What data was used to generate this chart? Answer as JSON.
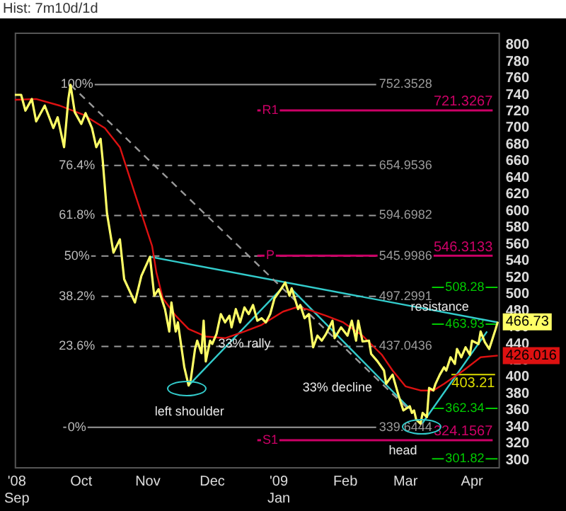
{
  "chart_data": {
    "type": "line",
    "title": "Hist: 7m10d/1d",
    "xlim": [
      "2008-08-31",
      "2009-04-14"
    ],
    "xticks": [
      {
        "value": "2008-09-01",
        "label": "'08\nSep"
      },
      {
        "value": "2008-10-01",
        "label": "Oct"
      },
      {
        "value": "2008-11-01",
        "label": "Nov"
      },
      {
        "value": "2008-12-01",
        "label": "Dec"
      },
      {
        "value": "2009-01-01",
        "label": "'09\nJan"
      },
      {
        "value": "2009-02-01",
        "label": "Feb"
      },
      {
        "value": "2009-03-01",
        "label": "Mar"
      },
      {
        "value": "2009-04-01",
        "label": "Apr"
      }
    ],
    "ylim": [
      290,
      815
    ],
    "yticks": [
      300,
      320,
      340,
      360,
      380,
      400,
      420,
      440,
      460,
      480,
      500,
      520,
      540,
      560,
      580,
      600,
      620,
      640,
      660,
      680,
      700,
      720,
      740,
      760,
      780,
      800
    ],
    "grid": false,
    "legend": false,
    "marker": "none",
    "series": [
      {
        "color": "#ffff66",
        "x": [
          "2008-08-31",
          "2008-09-03",
          "2008-09-05",
          "2008-09-08",
          "2008-09-10",
          "2008-09-14",
          "2008-09-18",
          "2008-09-20",
          "2008-09-23",
          "2008-09-25",
          "2008-09-26",
          "2008-09-28",
          "2008-10-01",
          "2008-10-03",
          "2008-10-06",
          "2008-10-08",
          "2008-10-10",
          "2008-10-11",
          "2008-10-13",
          "2008-10-16",
          "2008-10-19",
          "2008-10-21",
          "2008-10-26",
          "2008-10-29",
          "2008-11-02",
          "2008-11-04",
          "2008-11-06",
          "2008-11-09",
          "2008-11-11",
          "2008-11-12",
          "2008-11-14",
          "2008-11-15",
          "2008-11-18",
          "2008-11-20",
          "2008-11-21",
          "2008-11-23",
          "2008-11-24",
          "2008-11-26",
          "2008-11-27",
          "2008-11-28",
          "2008-11-30",
          "2008-12-01",
          "2008-12-03",
          "2008-12-05",
          "2008-12-07",
          "2008-12-09",
          "2008-12-10",
          "2008-12-12",
          "2008-12-14",
          "2008-12-16",
          "2008-12-18",
          "2008-12-20",
          "2008-12-22",
          "2008-12-24",
          "2008-12-26",
          "2008-12-28",
          "2008-12-30",
          "2009-01-02",
          "2009-01-04",
          "2009-01-06",
          "2009-01-07",
          "2009-01-10",
          "2009-01-11",
          "2009-01-13",
          "2009-01-15",
          "2009-01-17",
          "2009-01-19",
          "2009-01-21",
          "2009-01-23",
          "2009-01-26",
          "2009-01-27",
          "2009-01-30",
          "2009-02-02",
          "2009-02-04",
          "2009-02-06",
          "2009-02-07",
          "2009-02-09",
          "2009-02-12",
          "2009-02-13",
          "2009-02-16",
          "2009-02-19",
          "2009-02-20",
          "2009-02-23",
          "2009-02-26",
          "2009-02-28",
          "2009-03-03",
          "2009-03-04",
          "2009-03-05",
          "2009-03-06",
          "2009-03-08",
          "2009-03-09",
          "2009-03-11",
          "2009-03-12",
          "2009-03-14",
          "2009-03-15",
          "2009-03-17",
          "2009-03-19",
          "2009-03-20",
          "2009-03-22",
          "2009-03-24",
          "2009-03-25",
          "2009-03-27",
          "2009-03-29",
          "2009-03-31",
          "2009-04-01",
          "2009-04-04",
          "2009-04-05",
          "2009-04-07",
          "2009-04-09",
          "2009-04-10",
          "2009-04-12",
          "2009-04-13"
        ],
        "values": [
          740,
          740,
          721,
          735,
          708,
          727,
          700,
          713,
          677,
          735,
          752,
          719,
          705,
          718,
          700,
          677,
          687,
          661,
          597,
          550,
          566,
          518,
          490,
          522,
          545,
          498,
          506,
          482,
          455,
          490,
          455,
          466,
          412,
          390,
          397,
          434,
          444,
          429,
          468,
          419,
          444,
          440,
          452,
          476,
          466,
          474,
          460,
          482,
          466,
          484,
          476,
          487,
          468,
          471,
          466,
          476,
          495,
          506,
          514,
          498,
          507,
          482,
          487,
          471,
          476,
          436,
          450,
          444,
          452,
          468,
          447,
          460,
          450,
          468,
          444,
          468,
          443,
          444,
          428,
          419,
          408,
          392,
          403,
          376,
          360,
          365,
          357,
          360,
          349,
          344,
          357,
          352,
          387,
          384,
          392,
          403,
          412,
          408,
          424,
          416,
          434,
          424,
          436,
          427,
          444,
          440,
          455,
          442,
          434,
          442,
          458,
          466.73
        ],
        "value_labels": [
          null,
          null,
          null,
          null,
          null,
          null,
          null,
          null,
          null,
          null,
          null,
          null,
          null,
          null,
          null,
          null,
          null,
          null,
          null,
          null,
          null,
          null,
          null,
          null,
          null,
          null,
          null,
          null,
          null,
          null,
          null,
          null,
          null,
          null,
          null,
          null,
          null,
          null,
          null,
          null,
          null,
          null,
          null,
          null,
          null,
          null,
          null,
          null,
          null,
          null,
          null,
          null,
          null,
          null,
          null,
          null,
          null,
          null,
          null,
          null,
          null,
          null,
          null,
          null,
          null,
          null,
          null,
          null,
          null,
          null,
          null,
          null,
          null,
          null,
          null,
          null,
          null,
          null,
          null,
          null,
          null,
          null,
          null,
          null,
          null,
          null,
          null,
          null,
          null,
          null,
          null,
          null,
          null,
          null,
          null,
          null,
          null,
          null,
          null,
          null,
          null,
          null,
          null,
          null,
          null,
          null,
          null,
          null,
          null,
          null,
          null,
          "466.73"
        ]
      },
      {
        "color": "#dd1111",
        "x": [
          "2008-08-31",
          "2008-09-10",
          "2008-09-21",
          "2008-10-02",
          "2008-10-12",
          "2008-10-19",
          "2008-10-26",
          "2008-11-03",
          "2008-11-05",
          "2008-11-08",
          "2008-11-14",
          "2008-11-20",
          "2008-11-28",
          "2008-12-07",
          "2008-12-16",
          "2008-12-24",
          "2009-01-03",
          "2009-01-09",
          "2009-01-14",
          "2009-01-23",
          "2009-01-31",
          "2009-02-09",
          "2009-02-18",
          "2009-02-23",
          "2009-03-01",
          "2009-03-08",
          "2009-03-14",
          "2009-03-19",
          "2009-03-28",
          "2009-04-05",
          "2009-04-13"
        ],
        "values": [
          734,
          735,
          727,
          716,
          700,
          677,
          621,
          558,
          526,
          495,
          474,
          458,
          449,
          447,
          455,
          463,
          479,
          484,
          482,
          474,
          466,
          450,
          427,
          408,
          389,
          384,
          384,
          392,
          408,
          424,
          426.016
        ],
        "value_labels": [
          null,
          null,
          null,
          null,
          null,
          null,
          null,
          null,
          null,
          null,
          null,
          null,
          null,
          null,
          null,
          null,
          null,
          null,
          null,
          null,
          null,
          null,
          null,
          null,
          null,
          null,
          null,
          null,
          null,
          null,
          "426.016"
        ]
      },
      {
        "color": "#999999",
        "line_style": "dashed",
        "x": [
          "2008-09-26",
          "2009-03-03"
        ],
        "values": [
          752,
          360
        ]
      },
      {
        "color": "#33cccc",
        "x": [
          "2008-11-02",
          "2009-04-13"
        ],
        "values": [
          545,
          466
        ]
      },
      {
        "color": "#33cccc",
        "x": [
          "2008-11-20",
          "2009-01-02"
        ],
        "values": [
          390,
          506
        ]
      },
      {
        "color": "#33cccc",
        "x": [
          "2009-01-07",
          "2009-03-03"
        ],
        "values": [
          506,
          362
        ]
      },
      {
        "color": "#33cccc",
        "x": [
          "2009-03-09",
          "2009-04-08"
        ],
        "values": [
          345,
          455
        ]
      }
    ],
    "ref_lines": [
      {
        "axis": "y",
        "value": 752.3528,
        "label": "752.3528",
        "color": "#9a9a9a",
        "line_style": "solid"
      },
      {
        "axis": "y",
        "value": 654.9536,
        "label": "654.9536",
        "color": "#9a9a9a",
        "line_style": "dashed"
      },
      {
        "axis": "y",
        "value": 594.6982,
        "label": "594.6982",
        "color": "#9a9a9a",
        "line_style": "dashed"
      },
      {
        "axis": "y",
        "value": 545.9986,
        "label": "545.9986",
        "color": "#9a9a9a",
        "line_style": "dashed"
      },
      {
        "axis": "y",
        "value": 497.2991,
        "label": "497.2991",
        "color": "#9a9a9a",
        "line_style": "dashed"
      },
      {
        "axis": "y",
        "value": 437.0436,
        "label": "437.0436",
        "color": "#9a9a9a",
        "line_style": "dashed"
      },
      {
        "axis": "y",
        "value": 339.6444,
        "label": "339.6444",
        "color": "#9a9a9a",
        "line_style": "solid"
      },
      {
        "axis": "y",
        "value": 721.3267,
        "label": "721.3267",
        "color": "#cc0066"
      },
      {
        "axis": "y",
        "value": 546.3133,
        "label": "546.3133",
        "color": "#cc0066"
      },
      {
        "axis": "y",
        "value": 324.1567,
        "label": "324.1567",
        "color": "#cc0066"
      },
      {
        "axis": "y",
        "value": 508.28,
        "label": "508.28",
        "color": "#00cc00"
      },
      {
        "axis": "y",
        "value": 463.93,
        "label": "463.93",
        "color": "#00cc00"
      },
      {
        "axis": "y",
        "value": 362.34,
        "label": "362.34",
        "color": "#00cc00"
      },
      {
        "axis": "y",
        "value": 301.82,
        "label": "301.82",
        "color": "#00cc00"
      },
      {
        "axis": "y",
        "value": 403.21,
        "label": "403.21",
        "color": "#dddd00"
      }
    ],
    "annotations": [
      "left shoulder",
      "33% decline",
      "head",
      {
        "text": "33% rally",
        "x": "2008-12-16",
        "y": 440
      },
      {
        "text": "resistance",
        "x": "2009-03-17",
        "y": 484
      },
      {
        "text": "100%",
        "x": "2008-09-29",
        "y": 752.3528
      },
      {
        "text": "76.4%",
        "x": "2008-09-29",
        "y": 654.9536
      },
      {
        "text": "61.8%",
        "x": "2008-09-29",
        "y": 594.6982
      },
      {
        "text": "50%",
        "x": "2008-09-29",
        "y": 545.9986
      },
      {
        "text": "38.2%",
        "x": "2008-09-29",
        "y": 497.2991
      },
      {
        "text": "23.6%",
        "x": "2008-09-29",
        "y": 437.0436
      },
      {
        "text": "0%",
        "x": "2008-09-29",
        "y": 339.6444
      },
      {
        "text": "R1",
        "x": "2008-12-28",
        "y": 721.3267
      },
      {
        "text": "P",
        "x": "2008-12-28",
        "y": 546.3133
      },
      {
        "text": "S1",
        "x": "2008-12-28",
        "y": 324.1567
      }
    ]
  }
}
